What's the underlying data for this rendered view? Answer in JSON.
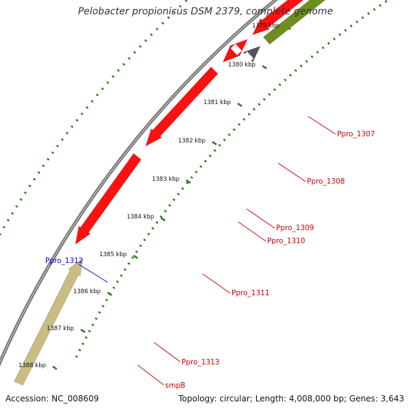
{
  "title": "Pelobacter propionicus DSM 2379, complete genome",
  "footer": {
    "accession": "Accession: NC_008609",
    "summary": "Topology: circular; Length: 4,008,000 bp; Genes: 3,643"
  },
  "colors": {
    "backbone": "#8a8a8a",
    "ticks": "#2e7d1e",
    "gene_red": "#ff1010",
    "gene_olive": "#6e8f1e",
    "gene_khaki": "#c8be82",
    "gene_grey": "#555555",
    "gene_blue": "#1010e0",
    "gene_pink": "#ff80c0",
    "gene_magenta": "#e0208a",
    "label_red": "#cc0000",
    "label_blue": "#0000cc"
  },
  "scale_labels": [
    "1379 kbp",
    "1380 kbp",
    "1381 kbp",
    "1382 kbp",
    "1383 kbp",
    "1384 kbp",
    "1385 kbp",
    "1386 kbp",
    "1387 kbp",
    "1388 kbp"
  ],
  "gene_labels": [
    {
      "text": "Ppro_1307",
      "color": "red"
    },
    {
      "text": "Ppro_1308",
      "color": "red"
    },
    {
      "text": "Ppro_1309",
      "color": "red"
    },
    {
      "text": "Ppro_1310",
      "color": "red"
    },
    {
      "text": "Ppro_1311",
      "color": "red"
    },
    {
      "text": "Ppro_1312",
      "color": "blue"
    },
    {
      "text": "Ppro_1313",
      "color": "red"
    },
    {
      "text": "smpB",
      "color": "red"
    }
  ]
}
